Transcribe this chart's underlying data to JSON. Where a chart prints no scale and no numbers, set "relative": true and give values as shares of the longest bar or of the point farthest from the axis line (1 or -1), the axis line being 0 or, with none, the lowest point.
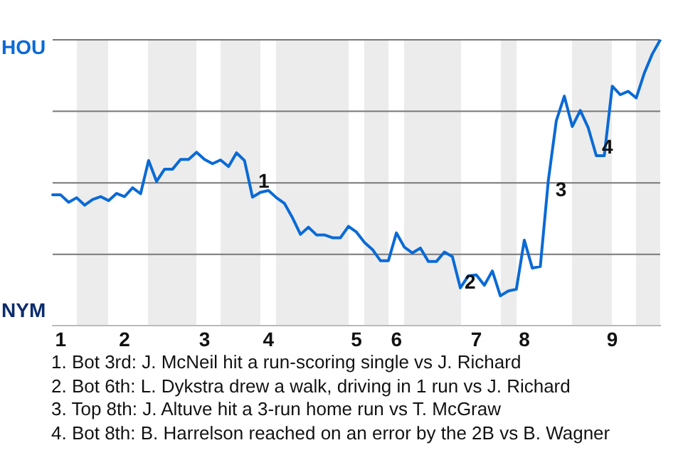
{
  "chart_data": {
    "type": "line",
    "relative": true,
    "categories": [
      null,
      "1",
      null,
      null,
      null,
      null,
      null,
      null,
      null,
      "2",
      null,
      null,
      null,
      null,
      null,
      null,
      null,
      null,
      null,
      "3",
      null,
      null,
      null,
      null,
      null,
      null,
      null,
      "4",
      null,
      null,
      null,
      null,
      null,
      null,
      null,
      null,
      null,
      null,
      "5",
      null,
      null,
      null,
      null,
      "6",
      null,
      null,
      null,
      null,
      null,
      null,
      null,
      null,
      null,
      "7",
      null,
      null,
      null,
      null,
      null,
      "8",
      null,
      null,
      null,
      null,
      null,
      null,
      null,
      null,
      null,
      null,
      "9",
      null,
      null,
      null,
      null,
      null,
      null
    ],
    "series": [
      {
        "color": "#0a6ad6",
        "values": [
          0.458,
          0.458,
          0.432,
          0.448,
          0.422,
          0.442,
          0.452,
          0.438,
          0.463,
          0.452,
          0.483,
          0.462,
          0.578,
          0.505,
          0.548,
          0.548,
          0.582,
          0.582,
          0.607,
          0.582,
          0.567,
          0.58,
          0.557,
          0.605,
          0.578,
          0.45,
          0.467,
          0.473,
          0.448,
          0.428,
          0.378,
          0.32,
          0.345,
          0.318,
          0.318,
          0.308,
          0.308,
          0.348,
          0.328,
          0.292,
          0.267,
          0.228,
          0.228,
          0.325,
          0.275,
          0.255,
          0.272,
          0.225,
          0.225,
          0.258,
          0.242,
          0.133,
          0.175,
          0.178,
          0.142,
          0.192,
          0.105,
          0.122,
          0.128,
          0.3,
          0.202,
          0.208,
          0.508,
          0.717,
          0.803,
          0.697,
          0.753,
          0.692,
          0.595,
          0.595,
          0.838,
          0.808,
          0.82,
          0.797,
          0.883,
          0.95,
          1.0
        ]
      }
    ],
    "grid": "y",
    "marker": "none",
    "line_style": "solid",
    "annotations": [
      "1",
      "2",
      "3",
      "4",
      "HOU",
      "NYM",
      "1. Bot 3rd: J. McNeil hit a run-scoring single vs J. Richard",
      "2. Bot 6th: L. Dykstra drew a walk, driving in 1 run vs J. Richard",
      "3. Top 8th: J. Altuve hit a 3-run home run vs T. McGraw",
      "4. Bot 8th: B. Harrelson reached on an error by the 2B vs B. Wagner"
    ]
  }
}
